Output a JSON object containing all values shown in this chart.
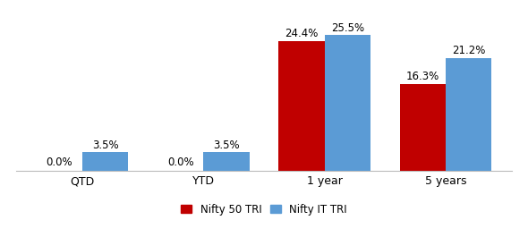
{
  "categories": [
    "QTD",
    "YTD",
    "1 year",
    "5 years"
  ],
  "nifty50_values": [
    0.0,
    0.0,
    24.4,
    16.3
  ],
  "niftyIT_values": [
    3.5,
    3.5,
    25.5,
    21.2
  ],
  "nifty50_color": "#C00000",
  "niftyIT_color": "#5B9BD5",
  "nifty50_label": "Nifty 50 TRI",
  "niftyIT_label": "Nifty IT TRI",
  "bar_width": 0.38,
  "ylim": [
    0,
    29
  ],
  "background_color": "#FFFFFF",
  "label_fontsize": 8.5,
  "tick_fontsize": 9,
  "legend_fontsize": 8.5
}
